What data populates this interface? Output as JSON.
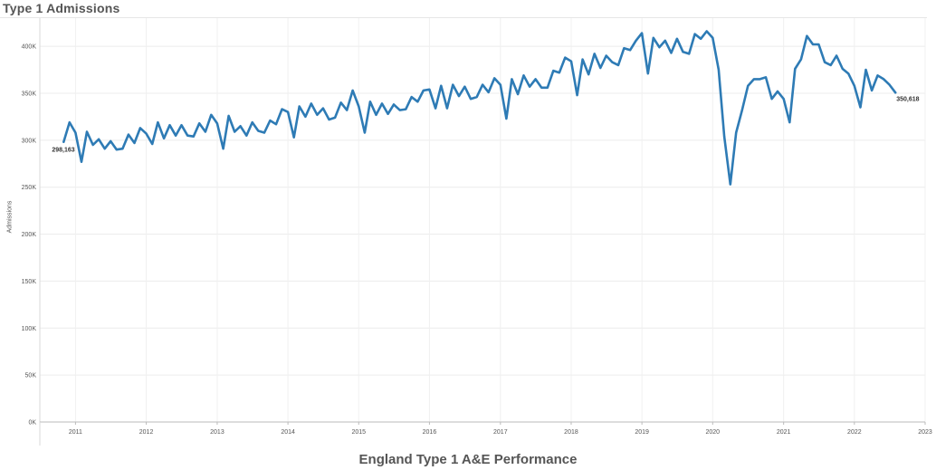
{
  "header": {
    "title": "Type 1 Admissions"
  },
  "footer": {
    "title": "England Type 1 A&E Performance"
  },
  "chart_data": {
    "type": "line",
    "title": "Type 1 Admissions",
    "xlabel": "",
    "ylabel": "Admissions",
    "ylim": [
      0,
      430000
    ],
    "xlim": [
      "2010-07-01",
      "2023-01-01"
    ],
    "y_ticks": [
      0,
      50000,
      100000,
      150000,
      200000,
      250000,
      300000,
      350000,
      400000
    ],
    "y_tick_labels": [
      "0K",
      "50K",
      "100K",
      "150K",
      "200K",
      "250K",
      "300K",
      "350K",
      "400K"
    ],
    "x_ticks": [
      "2011",
      "2012",
      "2013",
      "2014",
      "2015",
      "2016",
      "2017",
      "2018",
      "2019",
      "2020",
      "2021",
      "2022",
      "2023"
    ],
    "grid": true,
    "color": "#2e7bb5",
    "start_label": "298,163",
    "end_label": "350,618",
    "series": [
      {
        "x": [
          "2010-11",
          "2010-12",
          "2011-01",
          "2011-02",
          "2011-03",
          "2011-04",
          "2011-05",
          "2011-06",
          "2011-07",
          "2011-08",
          "2011-09",
          "2011-10",
          "2011-11",
          "2011-12",
          "2012-01",
          "2012-02",
          "2012-03",
          "2012-04",
          "2012-05",
          "2012-06",
          "2012-07",
          "2012-08",
          "2012-09",
          "2012-10",
          "2012-11",
          "2012-12",
          "2013-01",
          "2013-02",
          "2013-03",
          "2013-04",
          "2013-05",
          "2013-06",
          "2013-07",
          "2013-08",
          "2013-09",
          "2013-10",
          "2013-11",
          "2013-12",
          "2014-01",
          "2014-02",
          "2014-03",
          "2014-04",
          "2014-05",
          "2014-06",
          "2014-07",
          "2014-08",
          "2014-09",
          "2014-10",
          "2014-11",
          "2014-12",
          "2015-01",
          "2015-02",
          "2015-03",
          "2015-04",
          "2015-05",
          "2015-06",
          "2015-07",
          "2015-08",
          "2015-09",
          "2015-10",
          "2015-11",
          "2015-12",
          "2016-01",
          "2016-02",
          "2016-03",
          "2016-04",
          "2016-05",
          "2016-06",
          "2016-07",
          "2016-08",
          "2016-09",
          "2016-10",
          "2016-11",
          "2016-12",
          "2017-01",
          "2017-02",
          "2017-03",
          "2017-04",
          "2017-05",
          "2017-06",
          "2017-07",
          "2017-08",
          "2017-09",
          "2017-10",
          "2017-11",
          "2017-12",
          "2018-01",
          "2018-02",
          "2018-03",
          "2018-04",
          "2018-05",
          "2018-06",
          "2018-07",
          "2018-08",
          "2018-09",
          "2018-10",
          "2018-11",
          "2018-12",
          "2019-01",
          "2019-02",
          "2019-03",
          "2019-04",
          "2019-05",
          "2019-06",
          "2019-07",
          "2019-08",
          "2019-09",
          "2019-10",
          "2019-11",
          "2019-12",
          "2020-01",
          "2020-02",
          "2020-03",
          "2020-04",
          "2020-05",
          "2020-06",
          "2020-07",
          "2020-08",
          "2020-09",
          "2020-10",
          "2020-11",
          "2020-12",
          "2021-01",
          "2021-02",
          "2021-03",
          "2021-04",
          "2021-05",
          "2021-06",
          "2021-07",
          "2021-08",
          "2021-09",
          "2021-10",
          "2021-11",
          "2021-12",
          "2022-01",
          "2022-02",
          "2022-03",
          "2022-04",
          "2022-05",
          "2022-06",
          "2022-07",
          "2022-08"
        ],
        "values": [
          298163,
          319000,
          308000,
          277000,
          309000,
          295000,
          301000,
          291000,
          299000,
          290000,
          291000,
          306000,
          297000,
          313000,
          307000,
          296000,
          319000,
          302000,
          316000,
          305000,
          316000,
          305000,
          304000,
          318000,
          309000,
          327000,
          318000,
          291000,
          326000,
          309000,
          315000,
          305000,
          319000,
          310000,
          308000,
          321000,
          317000,
          333000,
          330000,
          303000,
          336000,
          325000,
          339000,
          327000,
          334000,
          322000,
          324000,
          340000,
          332000,
          353000,
          336000,
          308000,
          341000,
          327000,
          339000,
          328000,
          338000,
          332000,
          333000,
          346000,
          341000,
          353000,
          354000,
          334000,
          358000,
          334000,
          359000,
          347000,
          357000,
          344000,
          346000,
          359000,
          351000,
          366000,
          359000,
          323000,
          365000,
          349000,
          369000,
          357000,
          365000,
          356000,
          356000,
          374000,
          372000,
          388000,
          384000,
          348000,
          386000,
          370000,
          392000,
          377000,
          390000,
          383000,
          380000,
          398000,
          396000,
          406000,
          414000,
          371000,
          409000,
          399000,
          406000,
          393000,
          408000,
          394000,
          392000,
          413000,
          408000,
          416000,
          409000,
          375000,
          304000,
          253000,
          308000,
          332000,
          358000,
          365000,
          365000,
          367000,
          344000,
          352000,
          344000,
          319000,
          376000,
          386000,
          411000,
          402000,
          402000,
          383000,
          380000,
          390000,
          376000,
          371000,
          358000,
          335000,
          375000,
          353000,
          369000,
          365000,
          359000,
          350618
        ]
      }
    ]
  }
}
